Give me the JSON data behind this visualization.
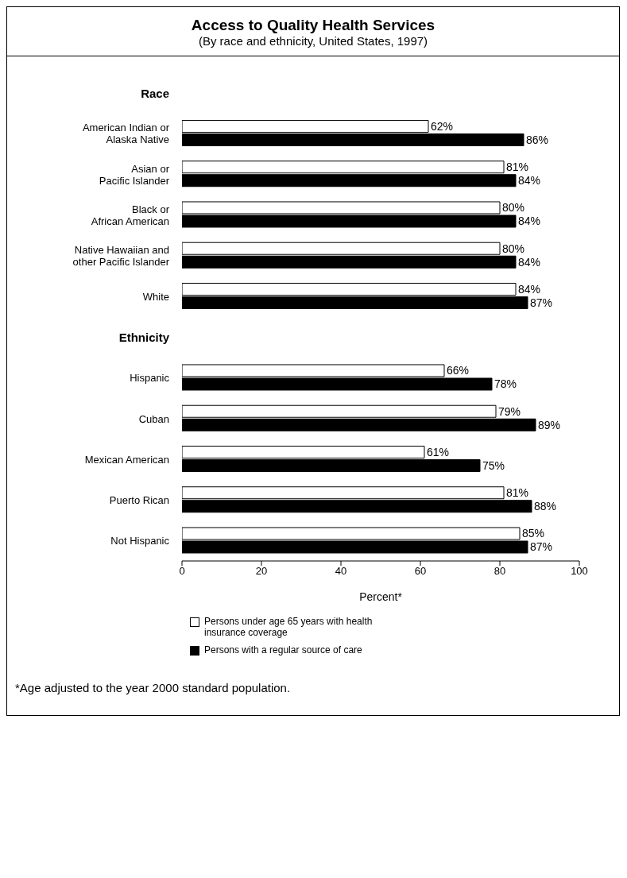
{
  "chart_data": {
    "type": "bar",
    "orientation": "horizontal",
    "title": "Access to Quality Health Services",
    "subtitle": "(By race and ethnicity, United States, 1997)",
    "xlabel": "Percent*",
    "categories": [
      "Race",
      "American Indian or\nAlaska Native",
      "Asian or\nPacific Islander",
      "Black or\nAfrican American",
      "Native Hawaiian and\nother Pacific Islander",
      "White",
      "Ethnicity",
      "Hispanic",
      "Cuban",
      "Mexican American",
      "Puerto Rican",
      "Not Hispanic"
    ],
    "series": [
      {
        "name": "Persons under age 65 years with health insurance coverage",
        "color": "#ffffff",
        "values": [
          null,
          62,
          81,
          80,
          80,
          84,
          null,
          66,
          79,
          61,
          81,
          85
        ],
        "value_labels": [
          null,
          "62%",
          "81%",
          "80%",
          "80%",
          "84%",
          null,
          "66%",
          "79%",
          "61%",
          "81%",
          "85%"
        ]
      },
      {
        "name": "Persons with a regular source of care",
        "color": "#000000",
        "values": [
          null,
          86,
          84,
          84,
          84,
          87,
          null,
          78,
          89,
          75,
          88,
          87
        ],
        "value_labels": [
          null,
          "86%",
          "84%",
          "84%",
          "84%",
          "87%",
          null,
          "78%",
          "89%",
          "75%",
          "88%",
          "87%"
        ]
      }
    ],
    "xlim": [
      0,
      100
    ],
    "xticks": [
      0,
      20,
      40,
      60,
      80,
      100
    ],
    "grid": false,
    "legend": "bottom",
    "annotations": [
      "*Age adjusted to the year 2000 standard population."
    ]
  }
}
